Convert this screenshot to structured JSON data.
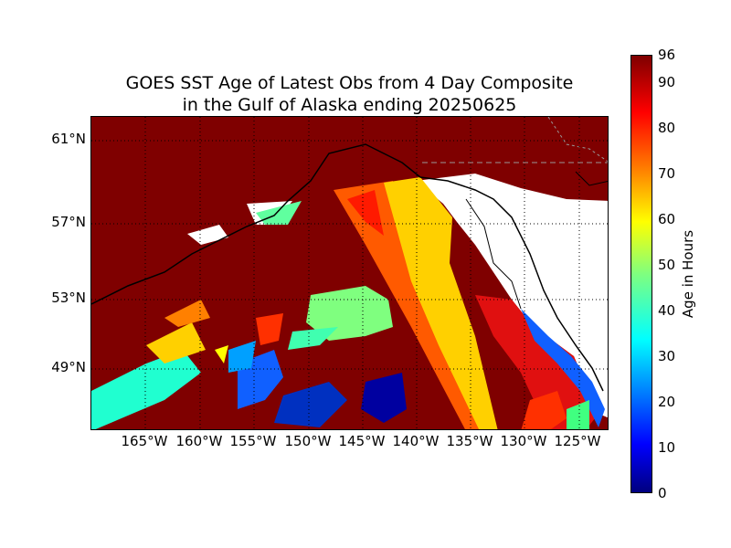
{
  "title": {
    "line1": "GOES SST Age of Latest Obs from 4 Day Composite",
    "line2": "in the Gulf of Alaska ending 20250625"
  },
  "map": {
    "lat_labels": [
      "61°N",
      "57°N",
      "53°N",
      "49°N"
    ],
    "lon_labels": [
      "165°W",
      "160°W",
      "155°W",
      "150°W",
      "145°W",
      "140°W",
      "135°W",
      "130°W",
      "125°W"
    ],
    "land_color": "#ffffff",
    "no_data_color": "#7f0000",
    "coastline_color": "#000000",
    "gridline_style": "dotted"
  },
  "colorbar": {
    "label": "Age in Hours",
    "ticks": [
      "0",
      "10",
      "20",
      "30",
      "40",
      "50",
      "60",
      "70",
      "80",
      "90",
      "96"
    ],
    "min": 0,
    "max": 96,
    "colormap": "jet"
  }
}
